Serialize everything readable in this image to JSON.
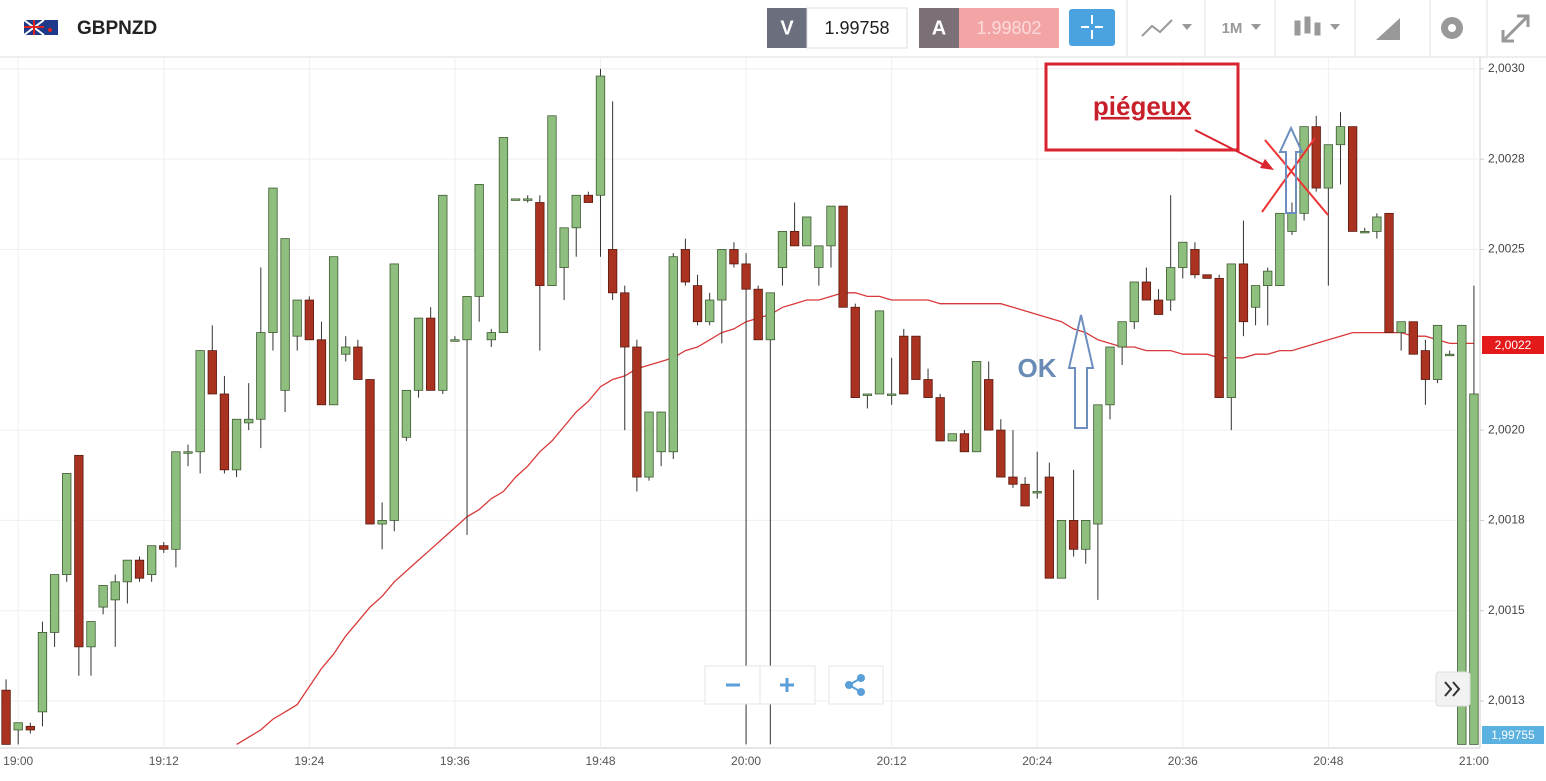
{
  "header": {
    "symbol": "GBPNZD",
    "sell_label": "V",
    "sell_price": 1.99758,
    "buy_label": "A",
    "buy_price": 1.99802,
    "timeframe": "1M"
  },
  "chart_data": {
    "type": "candlestick",
    "categories": [
      null,
      "19:00",
      null,
      null,
      null,
      null,
      null,
      null,
      null,
      null,
      null,
      null,
      null,
      "19:12",
      null,
      null,
      null,
      null,
      null,
      null,
      null,
      null,
      null,
      null,
      null,
      "19:24",
      null,
      null,
      null,
      null,
      null,
      null,
      null,
      null,
      null,
      null,
      null,
      "19:36",
      null,
      null,
      null,
      null,
      null,
      null,
      null,
      null,
      null,
      null,
      null,
      "19:48",
      null,
      null,
      null,
      null,
      null,
      null,
      null,
      null,
      null,
      null,
      null,
      "20:00",
      null,
      null,
      null,
      null,
      null,
      null,
      null,
      null,
      null,
      null,
      null,
      "20:12",
      null,
      null,
      null,
      null,
      null,
      null,
      null,
      null,
      null,
      null,
      null,
      "20:24",
      null,
      null,
      null,
      null,
      null,
      null,
      null,
      null,
      null,
      null,
      null,
      "20:36",
      null,
      null,
      null,
      null,
      null,
      null,
      null,
      null,
      null,
      null,
      null,
      "20:48",
      null,
      null,
      null,
      null,
      null,
      null,
      null,
      null,
      null,
      null,
      null,
      "21:00"
    ],
    "open": [
      2.00128,
      2.00117,
      2.00118,
      2.00122,
      2.00144,
      2.0016,
      2.00193,
      2.0014,
      2.00151,
      2.00153,
      2.00158,
      2.00164,
      2.0016,
      2.00168,
      2.00167,
      2.00194,
      2.00194,
      2.00222,
      2.0021,
      2.00189,
      2.00202,
      2.00203,
      2.00227,
      2.00211,
      2.00226,
      2.00236,
      2.00225,
      2.00207,
      2.00221,
      2.00223,
      2.00214,
      2.00174,
      2.00175,
      2.00198,
      2.00211,
      2.00231,
      2.00211,
      2.00225,
      2.00225,
      2.00237,
      2.00225,
      2.00227,
      2.00264,
      2.00264,
      2.00263,
      2.0024,
      2.00245,
      2.00256,
      2.00265,
      2.00265,
      2.0025,
      2.00238,
      2.00223,
      2.00187,
      2.00194,
      2.00194,
      2.0025,
      2.0024,
      2.0023,
      2.00236,
      2.0025,
      2.00246,
      2.00239,
      2.00225,
      2.00245,
      2.00255,
      2.00251,
      2.00245,
      2.00251,
      2.00262,
      2.00234,
      2.0021,
      2.0021,
      2.0021,
      2.00226,
      2.00226,
      2.00214,
      2.00209,
      2.00197,
      2.00199,
      2.00194,
      2.00214,
      2.002,
      2.00187,
      2.00185,
      2.00183,
      2.00187,
      2.00159,
      2.00175,
      2.00167,
      2.00174,
      2.00207,
      2.00223,
      2.0023,
      2.00241,
      2.00236,
      2.00236,
      2.00245,
      2.0025,
      2.00243,
      2.00242,
      2.00209,
      2.00246,
      2.00234,
      2.0024,
      2.0024,
      2.00255,
      2.0026,
      2.00284,
      2.00267,
      2.00279,
      2.00284,
      2.00255,
      2.00255,
      2.0026,
      2.00227,
      2.0023,
      2.00222,
      2.00214,
      2.00221,
      2.00113,
      2.00113
    ],
    "high": [
      2.00131,
      2.00119,
      2.00119,
      2.00147,
      2.0016,
      2.00188,
      2.00193,
      2.00147,
      2.00157,
      2.0016,
      2.00164,
      2.00165,
      2.00168,
      2.00169,
      2.00194,
      2.00196,
      2.00222,
      2.00229,
      2.00215,
      2.00203,
      2.00213,
      2.00245,
      2.00267,
      2.00253,
      2.00236,
      2.00237,
      2.0023,
      2.00248,
      2.00226,
      2.00225,
      2.00214,
      2.0018,
      2.00246,
      2.00211,
      2.00231,
      2.00234,
      2.00265,
      2.00226,
      2.00237,
      2.00268,
      2.00228,
      2.00281,
      2.00264,
      2.00265,
      2.00265,
      2.00287,
      2.00256,
      2.00265,
      2.00266,
      2.003,
      2.00291,
      2.0024,
      2.00225,
      2.00205,
      2.00205,
      2.00249,
      2.00253,
      2.00243,
      2.00238,
      2.0025,
      2.00252,
      2.00249,
      2.0024,
      2.00238,
      2.00255,
      2.00263,
      2.00259,
      2.00251,
      2.00262,
      2.00262,
      2.00235,
      2.0021,
      2.00233,
      2.0022,
      2.00228,
      2.00226,
      2.00217,
      2.0021,
      2.00199,
      2.002,
      2.00219,
      2.00219,
      2.00203,
      2.002,
      2.00187,
      2.00194,
      2.00191,
      2.00175,
      2.00189,
      2.00175,
      2.00207,
      2.00223,
      2.0023,
      2.00241,
      2.00245,
      2.00239,
      2.00265,
      2.00252,
      2.00252,
      2.00243,
      2.00243,
      2.00246,
      2.00258,
      2.0024,
      2.00245,
      2.0026,
      2.00263,
      2.00284,
      2.00287,
      2.00279,
      2.00288,
      2.00284,
      2.00256,
      2.0026,
      2.0026,
      2.0023,
      2.0023,
      2.00225,
      2.00229,
      2.00222,
      2.00229,
      2.0024
    ],
    "low": [
      2.00113,
      2.00113,
      2.00116,
      2.00118,
      2.0014,
      2.00158,
      2.00132,
      2.00132,
      2.00149,
      2.0014,
      2.00152,
      2.00158,
      2.00158,
      2.00166,
      2.00162,
      2.0019,
      2.00188,
      2.0021,
      2.00188,
      2.00187,
      2.002,
      2.00195,
      2.00222,
      2.00205,
      2.00222,
      2.00225,
      2.00207,
      2.00207,
      2.00219,
      2.00214,
      2.00174,
      2.00167,
      2.00172,
      2.00197,
      2.00209,
      2.00211,
      2.0021,
      2.00225,
      2.00171,
      2.0023,
      2.00223,
      2.00227,
      2.00264,
      2.00263,
      2.00222,
      2.0024,
      2.00236,
      2.00248,
      2.00263,
      2.00248,
      2.00236,
      2.002,
      2.00183,
      2.00186,
      2.0019,
      2.00192,
      2.0024,
      2.00229,
      2.00229,
      2.00224,
      2.00245,
      2.00113,
      2.00225,
      2.00113,
      2.0024,
      2.00251,
      2.00251,
      2.0024,
      2.00245,
      2.00234,
      2.00209,
      2.00206,
      2.0021,
      2.00207,
      2.0021,
      2.00214,
      2.00209,
      2.00197,
      2.00197,
      2.00194,
      2.00194,
      2.002,
      2.00187,
      2.00184,
      2.00179,
      2.00181,
      2.00159,
      2.00159,
      2.00165,
      2.00163,
      2.00153,
      2.00203,
      2.00218,
      2.00228,
      2.00236,
      2.00232,
      2.00233,
      2.00242,
      2.00242,
      2.00242,
      2.00209,
      2.002,
      2.00226,
      2.00229,
      2.00229,
      2.0024,
      2.00254,
      2.00258,
      2.00266,
      2.0024,
      2.00268,
      2.00255,
      2.00255,
      2.00253,
      2.00227,
      2.00222,
      2.00221,
      2.00207,
      2.00213,
      2.00221,
      2.00113,
      2.00113
    ],
    "close": [
      2.00113,
      2.00119,
      2.00117,
      2.00144,
      2.0016,
      2.00188,
      2.0014,
      2.00147,
      2.00157,
      2.00158,
      2.00164,
      2.00159,
      2.00168,
      2.00167,
      2.00194,
      2.00194,
      2.00222,
      2.0021,
      2.00189,
      2.00203,
      2.00203,
      2.00227,
      2.00267,
      2.00253,
      2.00236,
      2.00225,
      2.00207,
      2.00248,
      2.00223,
      2.00214,
      2.00174,
      2.00175,
      2.00246,
      2.00211,
      2.00231,
      2.00211,
      2.00265,
      2.00225,
      2.00237,
      2.00268,
      2.00227,
      2.00281,
      2.00264,
      2.00264,
      2.0024,
      2.00287,
      2.00256,
      2.00265,
      2.00263,
      2.00298,
      2.00238,
      2.00223,
      2.00187,
      2.00205,
      2.00205,
      2.00248,
      2.00241,
      2.0023,
      2.00236,
      2.0025,
      2.00246,
      2.00239,
      2.00225,
      2.00238,
      2.00255,
      2.00251,
      2.00259,
      2.00251,
      2.00262,
      2.00234,
      2.00209,
      2.0021,
      2.00233,
      2.0021,
      2.0021,
      2.00214,
      2.00209,
      2.00197,
      2.00199,
      2.00194,
      2.00219,
      2.002,
      2.00187,
      2.00185,
      2.00179,
      2.00183,
      2.00159,
      2.00175,
      2.00167,
      2.00175,
      2.00207,
      2.00223,
      2.0023,
      2.00241,
      2.00236,
      2.00232,
      2.00245,
      2.00252,
      2.00243,
      2.00242,
      2.00209,
      2.00246,
      2.0023,
      2.0024,
      2.00244,
      2.0026,
      2.0026,
      2.00284,
      2.00267,
      2.00279,
      2.00284,
      2.00255,
      2.00255,
      2.00259,
      2.00227,
      2.0023,
      2.00221,
      2.00214,
      2.00229,
      2.00221,
      2.00229,
      2.0021
    ],
    "up_color": "#8fbf7f",
    "down_color": "#a93220",
    "moving_average": {
      "color": "#d9393a",
      "values": [
        null,
        null,
        null,
        null,
        null,
        null,
        null,
        null,
        null,
        null,
        null,
        null,
        null,
        null,
        null,
        null,
        null,
        null,
        null,
        2.00113,
        2.00115,
        2.00117,
        2.0012,
        2.00122,
        2.00124,
        2.00129,
        2.00134,
        2.00138,
        2.00143,
        2.00147,
        2.00151,
        2.00154,
        2.00158,
        2.00161,
        2.00164,
        2.00167,
        2.0017,
        2.00173,
        2.00176,
        2.00178,
        2.00181,
        2.00183,
        2.00187,
        2.0019,
        2.00194,
        2.00197,
        2.00201,
        2.00205,
        2.00208,
        2.00212,
        2.00214,
        2.00215,
        2.00217,
        2.00218,
        2.00219,
        2.0022,
        2.00222,
        2.00223,
        2.00225,
        2.00227,
        2.00228,
        2.0023,
        2.00231,
        2.00232,
        2.00234,
        2.00235,
        2.00236,
        2.00236,
        2.00237,
        2.00238,
        2.00238,
        2.00237,
        2.00237,
        2.00236,
        2.00236,
        2.00236,
        2.00236,
        2.00235,
        2.00235,
        2.00235,
        2.00235,
        2.00235,
        2.00235,
        2.00234,
        2.00233,
        2.00232,
        2.00231,
        2.0023,
        2.00228,
        2.00227,
        2.00225,
        2.00224,
        2.00223,
        2.00223,
        2.00222,
        2.00222,
        2.00222,
        2.00221,
        2.00221,
        2.00221,
        2.0022,
        2.0022,
        2.0022,
        2.00221,
        2.00221,
        2.00222,
        2.00222,
        2.00223,
        2.00224,
        2.00225,
        2.00226,
        2.00227,
        2.00227,
        2.00227,
        2.00227,
        2.00227,
        2.00226,
        2.00226,
        2.00225,
        2.00224,
        2.00224,
        2.00224
      ]
    },
    "ylim": [
      2.00112,
      2.00303
    ],
    "yticks": [
      {
        "value": 2.003,
        "label": "2,0030"
      },
      {
        "value": 2.00275,
        "label": "2,0028"
      },
      {
        "value": 2.0025,
        "label": "2,0025"
      },
      {
        "value": 2.002,
        "label": "2,0020"
      },
      {
        "value": 2.00175,
        "label": "2,0018"
      },
      {
        "value": 2.0015,
        "label": "2,0015"
      },
      {
        "value": 2.00125,
        "label": "2,0013"
      }
    ],
    "grid": true,
    "price_tags": [
      "2,0022",
      "1,99755"
    ],
    "annotations": [
      "piégeux",
      "OK"
    ]
  }
}
